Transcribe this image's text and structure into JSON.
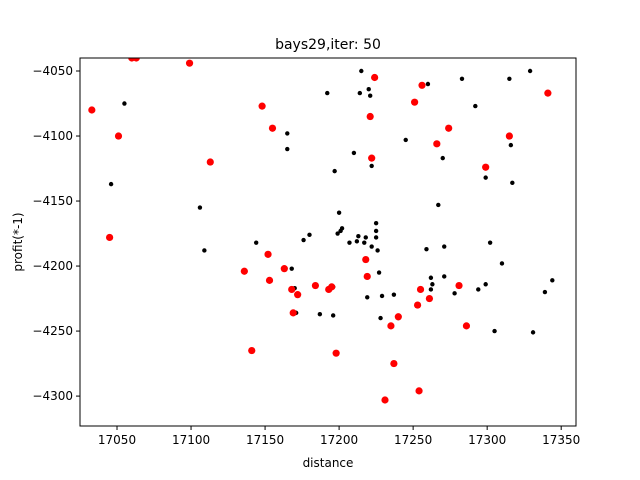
{
  "chart_data": {
    "type": "scatter",
    "title": "bays29,iter: 50",
    "xlabel": "distance",
    "ylabel": "profit(*-1)",
    "xlim": [
      17025,
      17360
    ],
    "ylim": [
      -4323,
      -4040
    ],
    "xticks": [
      17050,
      17100,
      17150,
      17200,
      17250,
      17300,
      17350
    ],
    "yticks": [
      -4050,
      -4100,
      -4150,
      -4200,
      -4250,
      -4300
    ],
    "grid": false,
    "series": [
      {
        "color": "#000000",
        "marker": "small-dot",
        "points": [
          [
            17046,
            -4137
          ],
          [
            17055,
            -4075
          ],
          [
            17106,
            -4155
          ],
          [
            17109,
            -4188
          ],
          [
            17144,
            -4182
          ],
          [
            17165,
            -4098
          ],
          [
            17165,
            -4110
          ],
          [
            17168,
            -4202
          ],
          [
            17170,
            -4217
          ],
          [
            17171,
            -4236
          ],
          [
            17176,
            -4180
          ],
          [
            17180,
            -4176
          ],
          [
            17187,
            -4237
          ],
          [
            17192,
            -4067
          ],
          [
            17196,
            -4238
          ],
          [
            17196,
            -4216
          ],
          [
            17197,
            -4127
          ],
          [
            17199,
            -4175
          ],
          [
            17200,
            -4159
          ],
          [
            17201,
            -4173
          ],
          [
            17202,
            -4171
          ],
          [
            17207,
            -4182
          ],
          [
            17210,
            -4113
          ],
          [
            17212,
            -4181
          ],
          [
            17213,
            -4177
          ],
          [
            17214,
            -4067
          ],
          [
            17215,
            -4050
          ],
          [
            17217,
            -4182
          ],
          [
            17218,
            -4178
          ],
          [
            17219,
            -4224
          ],
          [
            17220,
            -4064
          ],
          [
            17221,
            -4069
          ],
          [
            17222,
            -4123
          ],
          [
            17222,
            -4185
          ],
          [
            17225,
            -4167
          ],
          [
            17225,
            -4173
          ],
          [
            17225,
            -4178
          ],
          [
            17226,
            -4188
          ],
          [
            17227,
            -4205
          ],
          [
            17228,
            -4240
          ],
          [
            17229,
            -4223
          ],
          [
            17235,
            -4246
          ],
          [
            17237,
            -4222
          ],
          [
            17240,
            -4240
          ],
          [
            17245,
            -4103
          ],
          [
            17259,
            -4187
          ],
          [
            17260,
            -4060
          ],
          [
            17262,
            -4209
          ],
          [
            17262,
            -4218
          ],
          [
            17263,
            -4214
          ],
          [
            17266,
            -4106
          ],
          [
            17267,
            -4153
          ],
          [
            17270,
            -4117
          ],
          [
            17271,
            -4185
          ],
          [
            17271,
            -4208
          ],
          [
            17278,
            -4221
          ],
          [
            17283,
            -4056
          ],
          [
            17292,
            -4077
          ],
          [
            17294,
            -4218
          ],
          [
            17299,
            -4124
          ],
          [
            17299,
            -4132
          ],
          [
            17299,
            -4214
          ],
          [
            17302,
            -4182
          ],
          [
            17305,
            -4250
          ],
          [
            17310,
            -4198
          ],
          [
            17315,
            -4056
          ],
          [
            17316,
            -4107
          ],
          [
            17317,
            -4136
          ],
          [
            17329,
            -4050
          ],
          [
            17331,
            -4251
          ],
          [
            17339,
            -4220
          ],
          [
            17344,
            -4211
          ]
        ]
      },
      {
        "color": "#ff0000",
        "marker": "large-dot",
        "points": [
          [
            17033,
            -4080
          ],
          [
            17045,
            -4178
          ],
          [
            17051,
            -4100
          ],
          [
            17060,
            -4040
          ],
          [
            17063,
            -4040
          ],
          [
            17099,
            -4044
          ],
          [
            17113,
            -4120
          ],
          [
            17136,
            -4204
          ],
          [
            17141,
            -4265
          ],
          [
            17148,
            -4077
          ],
          [
            17152,
            -4191
          ],
          [
            17153,
            -4211
          ],
          [
            17155,
            -4094
          ],
          [
            17163,
            -4202
          ],
          [
            17168,
            -4218
          ],
          [
            17169,
            -4236
          ],
          [
            17172,
            -4222
          ],
          [
            17184,
            -4215
          ],
          [
            17193,
            -4218
          ],
          [
            17195,
            -4216
          ],
          [
            17198,
            -4267
          ],
          [
            17218,
            -4195
          ],
          [
            17219,
            -4208
          ],
          [
            17221,
            -4085
          ],
          [
            17222,
            -4117
          ],
          [
            17224,
            -4055
          ],
          [
            17231,
            -4303
          ],
          [
            17235,
            -4246
          ],
          [
            17237,
            -4275
          ],
          [
            17240,
            -4239
          ],
          [
            17251,
            -4074
          ],
          [
            17253,
            -4230
          ],
          [
            17254,
            -4296
          ],
          [
            17255,
            -4218
          ],
          [
            17256,
            -4061
          ],
          [
            17261,
            -4225
          ],
          [
            17266,
            -4106
          ],
          [
            17274,
            -4094
          ],
          [
            17281,
            -4215
          ],
          [
            17286,
            -4246
          ],
          [
            17299,
            -4124
          ],
          [
            17315,
            -4100
          ],
          [
            17341,
            -4067
          ]
        ]
      }
    ]
  }
}
